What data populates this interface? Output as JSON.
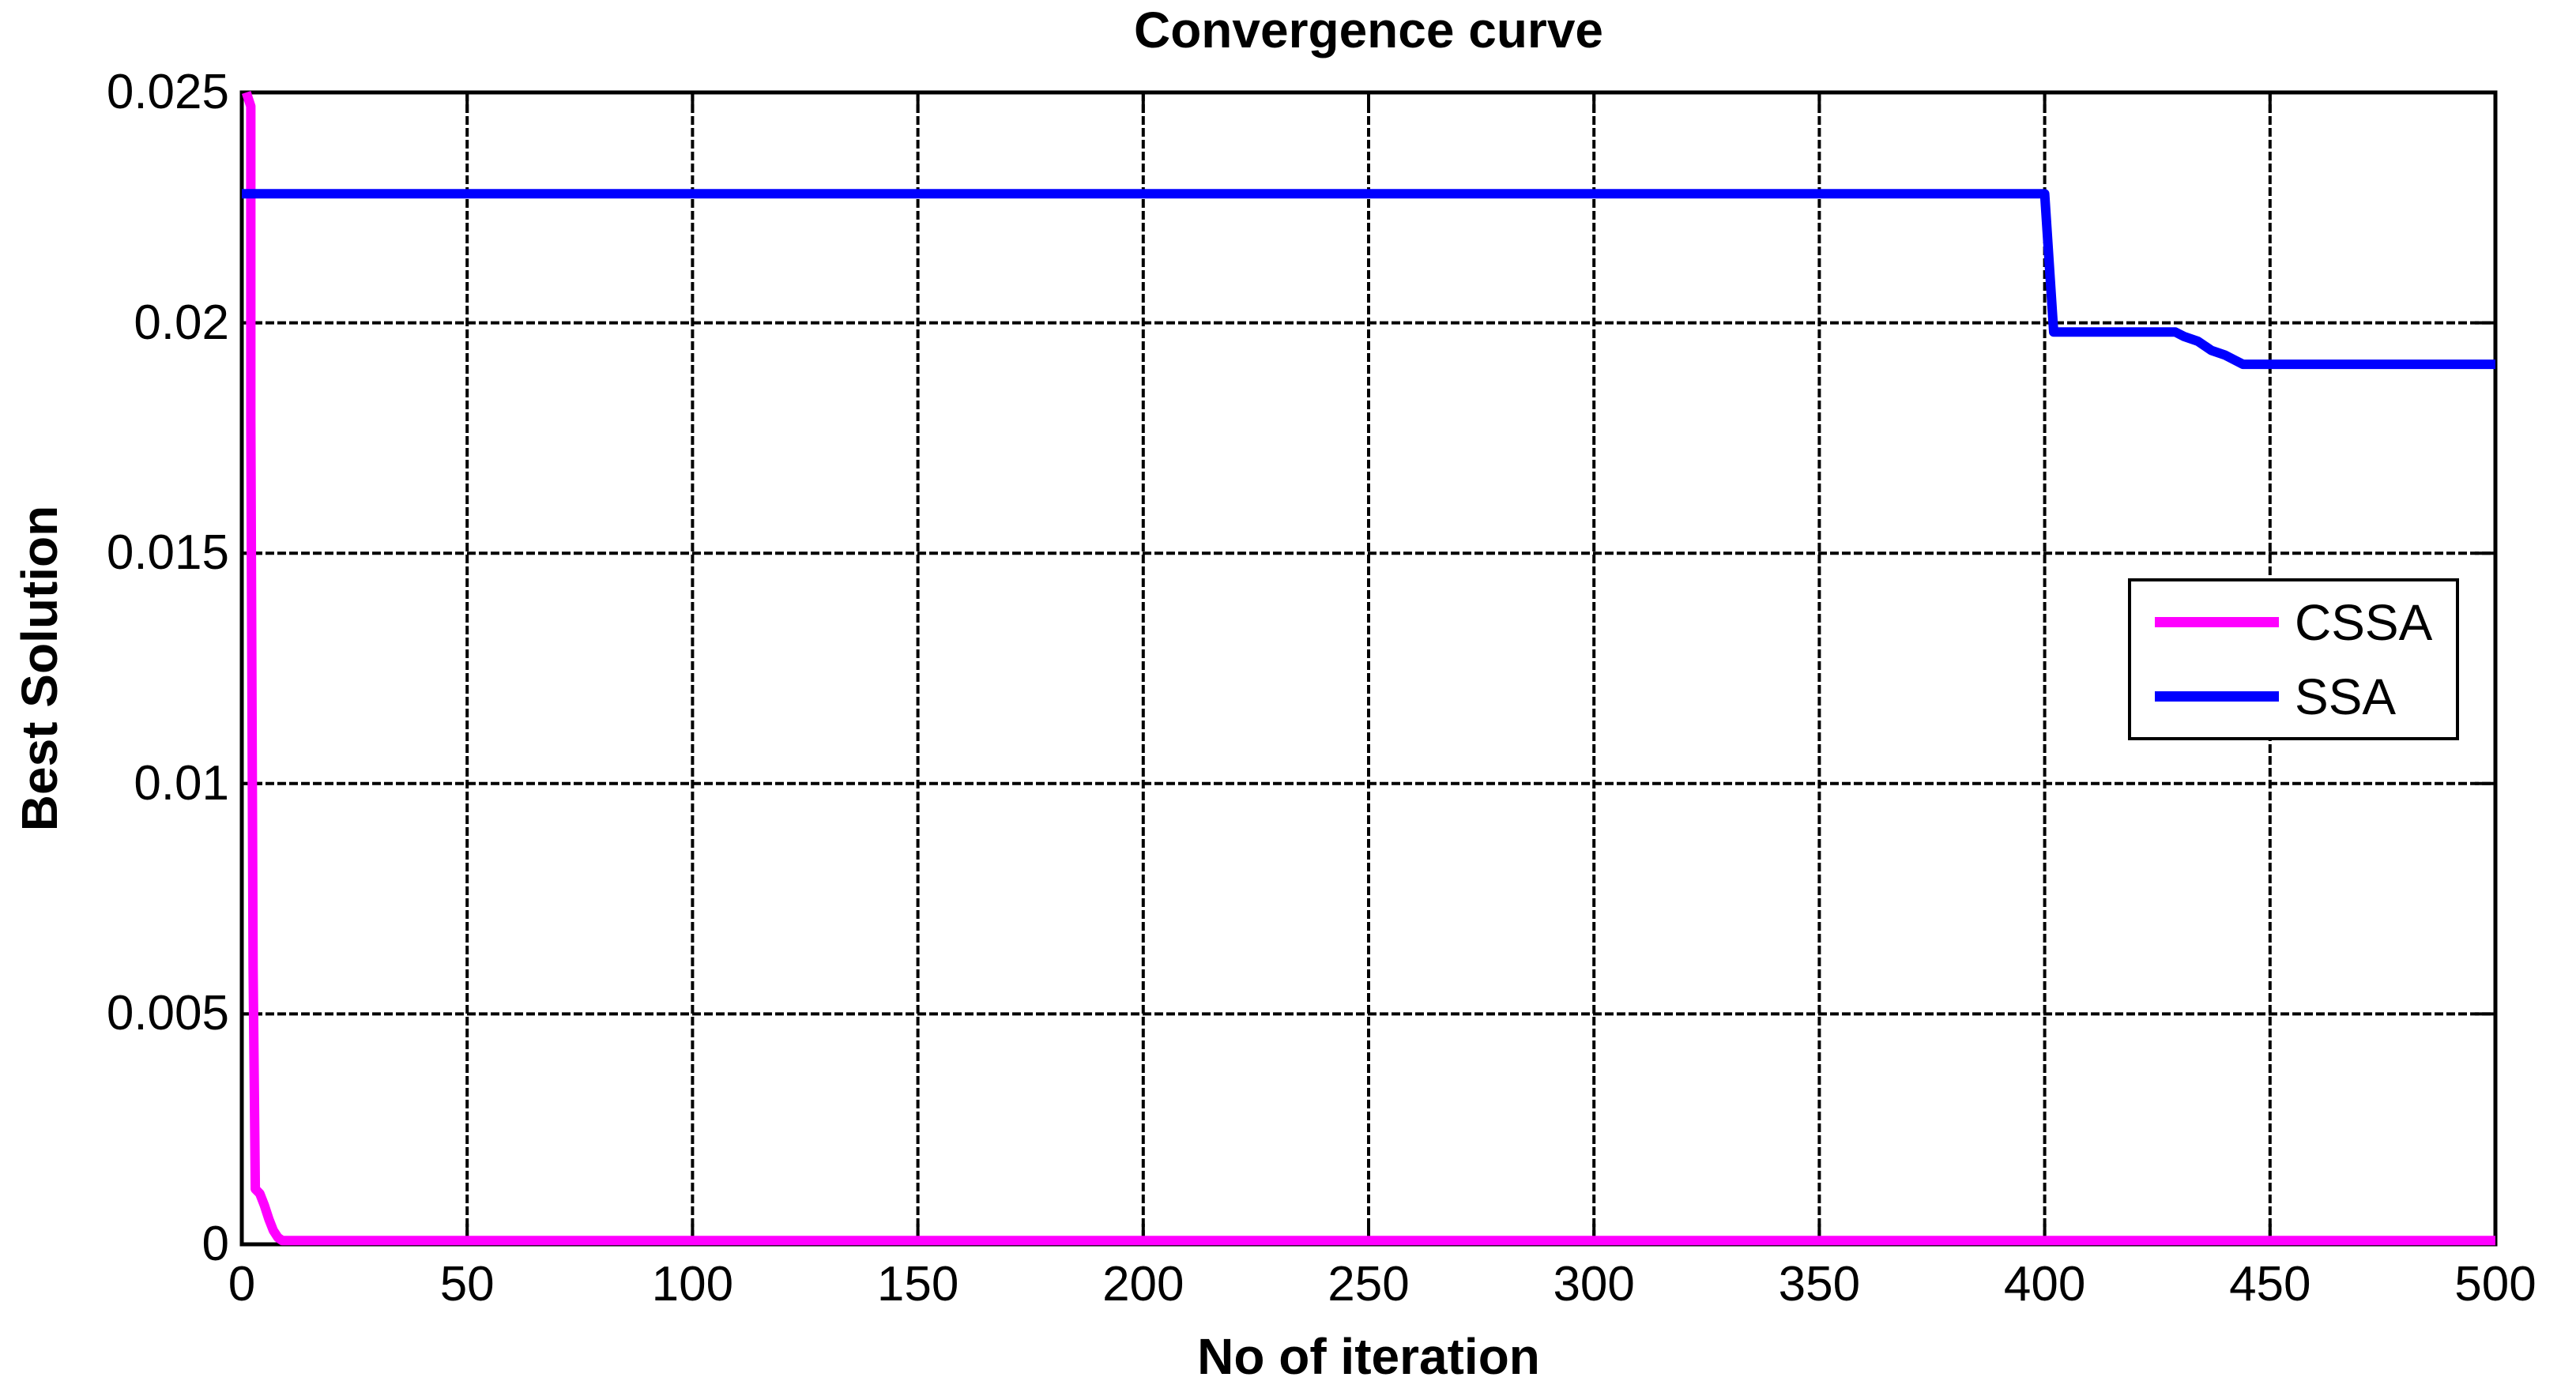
{
  "chart_data": {
    "type": "line",
    "title": "Convergence curve",
    "xlabel": "No of iteration",
    "ylabel": "Best Solution",
    "xlim": [
      0,
      500
    ],
    "ylim": [
      0,
      0.025
    ],
    "x_ticks": [
      0,
      50,
      100,
      150,
      200,
      250,
      300,
      350,
      400,
      450,
      500
    ],
    "x_tick_labels": [
      "0",
      "50",
      "100",
      "150",
      "200",
      "250",
      "300",
      "350",
      "400",
      "450",
      "500"
    ],
    "y_ticks": [
      0,
      0.005,
      0.01,
      0.015,
      0.02,
      0.025
    ],
    "y_tick_labels": [
      "0",
      "0.005",
      "0.01",
      "0.015",
      "0.02",
      "0.025"
    ],
    "grid": "dotted",
    "legend_position": "middle-right",
    "frame_color": "#000000",
    "grid_color": "#000000",
    "series": [
      {
        "name": "CSSA",
        "color": "#FF00FF",
        "points": [
          [
            1,
            0.025
          ],
          [
            2,
            0.0247
          ],
          [
            2,
            0.0219
          ],
          [
            2,
            0.0206
          ],
          [
            2,
            0.0179
          ],
          [
            2.5,
            0.006
          ],
          [
            3,
            0.0012
          ],
          [
            4,
            0.0011
          ],
          [
            5,
            0.00085
          ],
          [
            6,
            0.00055
          ],
          [
            7,
            0.0003
          ],
          [
            8,
            0.00015
          ],
          [
            9,
            8e-05
          ],
          [
            500,
            8e-05
          ]
        ]
      },
      {
        "name": "SSA",
        "color": "#0000FF",
        "points": [
          [
            0,
            0.0228
          ],
          [
            400,
            0.0228
          ],
          [
            402,
            0.0198
          ],
          [
            429,
            0.0198
          ],
          [
            431,
            0.0197
          ],
          [
            434,
            0.0196
          ],
          [
            437,
            0.0194
          ],
          [
            440,
            0.0193
          ],
          [
            442,
            0.0192
          ],
          [
            444,
            0.0191
          ],
          [
            500,
            0.0191
          ]
        ]
      }
    ]
  }
}
